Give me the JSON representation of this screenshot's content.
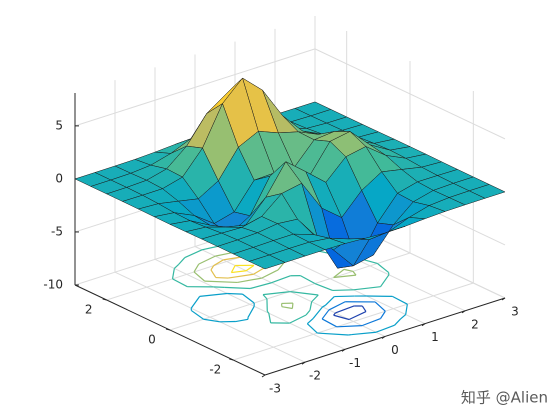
{
  "chart_data": {
    "type": "surfc",
    "x": [
      -3,
      -2.5,
      -2,
      -1.5,
      -1,
      -0.5,
      0,
      0.5,
      1,
      1.5,
      2,
      2.5,
      3
    ],
    "y": [
      -3,
      -2.5,
      -2,
      -1.5,
      -1,
      -0.5,
      0,
      0.5,
      1,
      1.5,
      2,
      2.5,
      3
    ],
    "z": [
      [
        0,
        0,
        0,
        0,
        -0.03,
        -0.14,
        -0.25,
        -0.22,
        -0.11,
        -0.03,
        -0.01,
        0,
        0
      ],
      [
        0,
        0,
        0.01,
        0,
        -0.23,
        -0.91,
        -1.57,
        -1.41,
        -0.69,
        -0.18,
        -0.03,
        0,
        0
      ],
      [
        0,
        0.01,
        0.05,
        0.05,
        -0.59,
        -2.64,
        -4.75,
        -4.34,
        -2.1,
        -0.53,
        -0.06,
        0,
        0
      ],
      [
        0,
        0.01,
        0.08,
        0.33,
        0.15,
        -2.19,
        -5.68,
        -5.76,
        -2.63,
        -0.44,
        0.04,
        0.03,
        0
      ],
      [
        -0.01,
        -0.06,
        -0.13,
        0.3,
        1.86,
        2.22,
        -0.72,
        -2.22,
        -0.27,
        0.88,
        0.5,
        0.11,
        0.01
      ],
      [
        -0.03,
        -0.2,
        -0.8,
        -1.21,
        0.8,
        3.55,
        2,
        0.39,
        2.2,
        2.56,
        1.12,
        0.24,
        0.03
      ],
      [
        -0.04,
        -0.3,
        -1.33,
        -2.77,
        -1.65,
        1.48,
        0.98,
        0.37,
        2.94,
        3.27,
        1.41,
        0.3,
        0.03
      ],
      [
        -0.03,
        -0.25,
        -1.12,
        -2.49,
        -2,
        0.39,
        0.46,
        0.38,
        2.38,
        2.56,
        1.09,
        0.23,
        0.03
      ],
      [
        -0.01,
        -0.11,
        -0.48,
        -0.86,
        0.23,
        2.79,
        3.69,
        2.94,
        2.43,
        1.58,
        0.58,
        0.11,
        0.01
      ],
      [
        0,
        -0.02,
        -0.01,
        0.48,
        2.61,
        6.2,
        8,
        6.25,
        3.25,
        1.19,
        0.29,
        0.05,
        0
      ],
      [
        0,
        0.01,
        0.08,
        0.55,
        2.09,
        4.55,
        5.85,
        4.56,
        2.21,
        0.68,
        0.13,
        0.02,
        0
      ],
      [
        0,
        0,
        0.03,
        0.19,
        0.69,
        1.47,
        1.88,
        1.47,
        0.7,
        0.2,
        0.04,
        0,
        0
      ],
      [
        0,
        0,
        0.01,
        0.03,
        0.11,
        0.23,
        0.3,
        0.23,
        0.11,
        0.03,
        0.01,
        0,
        0
      ]
    ],
    "xlim": [
      -3,
      3
    ],
    "ylim": [
      -3,
      3
    ],
    "zlim": [
      -10,
      8.1
    ],
    "xticks": [
      -3,
      -2,
      -1,
      0,
      1,
      2,
      3
    ],
    "yticks": [
      -2,
      0,
      2
    ],
    "zticks": [
      -10,
      -5,
      0,
      5
    ],
    "contour_levels": [
      -5,
      -3,
      -1,
      1,
      3,
      5,
      7
    ],
    "colormap": [
      "#352a87",
      "#0363e1",
      "#1485d4",
      "#06a7c6",
      "#38b99e",
      "#92bf73",
      "#d9ba56",
      "#fcce2e",
      "#f9fb0e"
    ],
    "grid": true,
    "watermark": "知乎 @Alien"
  }
}
